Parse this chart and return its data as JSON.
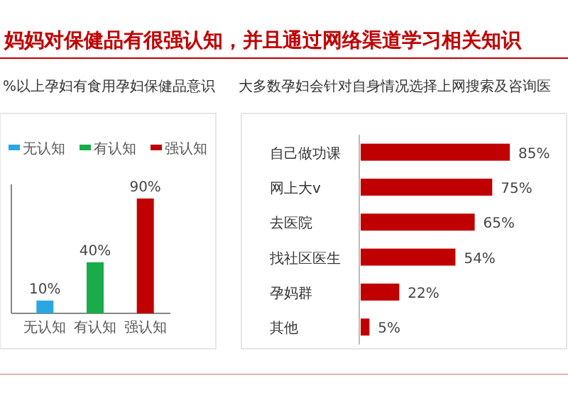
{
  "chart_data": [
    {
      "type": "bar",
      "title": "%以上孕妇有食用孕妇保健品意识",
      "annotations": [
        "妈妈对保健品有很强认知，并且通过网络渠道学习相关知识"
      ],
      "categories": [
        "无认知",
        "有认知",
        "强认知"
      ],
      "series": [
        {
          "name": "无认知",
          "color": "#29a8e0",
          "values": [
            10,
            null,
            null
          ],
          "value_labels": [
            "10%",
            null,
            null
          ]
        },
        {
          "name": "有认知",
          "color": "#1aab4a",
          "values": [
            null,
            40,
            null
          ],
          "value_labels": [
            null,
            "40%",
            null
          ]
        },
        {
          "name": "强认知",
          "color": "#c00000",
          "values": [
            null,
            null,
            90
          ],
          "value_labels": [
            null,
            null,
            "90%"
          ]
        }
      ],
      "legend": "top"
    },
    {
      "type": "bar",
      "orientation": "horizontal",
      "title": "大多数孕妇会针对自身情况选择上网搜索及咨询医",
      "categories": [
        "自己做功课",
        "网上大v",
        "去医院",
        "找社区医生",
        "孕妈群",
        "其他"
      ],
      "values": [
        85,
        75,
        65,
        54,
        22,
        5
      ],
      "value_labels": [
        "85%",
        "75%",
        "65%",
        "54%",
        "22%",
        "5%"
      ],
      "color": "#c00000"
    }
  ]
}
